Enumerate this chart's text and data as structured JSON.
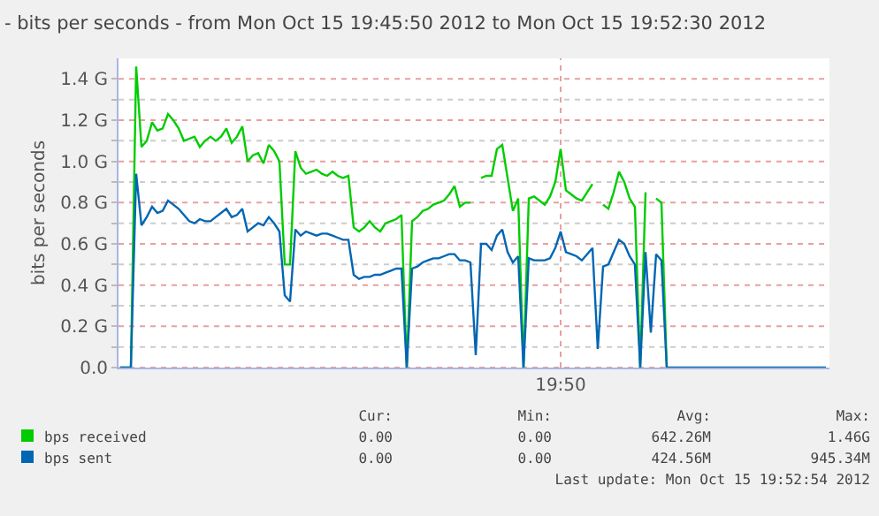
{
  "chart_data": {
    "type": "line",
    "title": "- bits per seconds - from Mon Oct 15 19:45:50 2012 to Mon Oct 15 19:52:30 2012",
    "ylabel": "bits per seconds",
    "categories": [
      null,
      null,
      null,
      null,
      null,
      null,
      null,
      null,
      null,
      null,
      null,
      null,
      null,
      null,
      null,
      null,
      null,
      null,
      null,
      null,
      null,
      null,
      null,
      null,
      null,
      null,
      null,
      null,
      null,
      null,
      null,
      null,
      null,
      null,
      null,
      null,
      null,
      null,
      null,
      null,
      null,
      null,
      null,
      null,
      null,
      null,
      null,
      null,
      null,
      null,
      null,
      null,
      null,
      null,
      null,
      null,
      null,
      null,
      null,
      null,
      null,
      null,
      null,
      null,
      null,
      null,
      null,
      null,
      null,
      null,
      null,
      null,
      null,
      null,
      null,
      null,
      null,
      null,
      null,
      null,
      null,
      null,
      null,
      "19:50",
      null,
      null,
      null,
      null,
      null,
      null,
      null,
      null,
      null,
      null,
      null,
      null,
      null,
      null,
      null,
      null,
      null,
      null,
      null,
      null,
      null,
      null,
      null,
      null,
      null,
      null,
      null,
      null,
      null,
      null,
      null,
      null,
      null,
      null,
      null,
      null,
      null,
      null,
      null,
      null,
      null,
      null,
      null,
      null,
      null,
      null,
      null,
      null,
      null,
      null
    ],
    "series": [
      {
        "name": "bps received",
        "color": "#00cc00",
        "values": [
          0,
          0,
          0,
          1.46,
          1.07,
          1.1,
          1.19,
          1.15,
          1.16,
          1.23,
          1.2,
          1.16,
          1.1,
          1.11,
          1.12,
          1.07,
          1.1,
          1.12,
          1.1,
          1.12,
          1.16,
          1.09,
          1.12,
          1.17,
          1.0,
          1.03,
          1.04,
          0.99,
          1.08,
          1.05,
          1.0,
          0.5,
          0.5,
          1.05,
          0.97,
          0.94,
          0.95,
          0.96,
          0.94,
          0.93,
          0.95,
          0.93,
          0.92,
          0.93,
          0.68,
          0.66,
          0.68,
          0.71,
          0.68,
          0.66,
          0.7,
          0.71,
          0.72,
          0.74,
          0,
          0.71,
          0.73,
          0.76,
          0.77,
          0.79,
          0.8,
          0.81,
          0.84,
          0.88,
          0.78,
          0.8,
          0.8,
          null,
          0.92,
          0.93,
          0.93,
          1.06,
          1.08,
          0.92,
          0.76,
          0.82,
          0,
          0.82,
          0.83,
          0.81,
          0.79,
          0.83,
          0.9,
          1.06,
          0.86,
          0.84,
          0.82,
          0.81,
          0.85,
          0.89,
          null,
          0.79,
          0.77,
          0.85,
          0.95,
          0.9,
          0.82,
          0.78,
          0,
          0.85,
          null,
          0.82,
          0.8,
          0,
          null,
          null,
          null,
          null,
          null,
          null,
          null,
          null,
          null,
          null,
          null,
          null,
          null,
          null,
          null,
          null,
          null,
          null,
          null,
          null,
          null,
          null,
          null,
          null,
          null,
          null,
          null,
          null,
          null,
          null
        ]
      },
      {
        "name": "bps sent",
        "color": "#0066b3",
        "values": [
          0,
          0,
          0,
          0.94,
          0.69,
          0.73,
          0.78,
          0.75,
          0.76,
          0.81,
          0.79,
          0.77,
          0.74,
          0.71,
          0.7,
          0.72,
          0.71,
          0.71,
          0.73,
          0.75,
          0.77,
          0.73,
          0.74,
          0.77,
          0.66,
          0.68,
          0.7,
          0.69,
          0.73,
          0.7,
          0.66,
          0.35,
          0.32,
          0.67,
          0.64,
          0.66,
          0.65,
          0.64,
          0.65,
          0.65,
          0.64,
          0.63,
          0.62,
          0.62,
          0.45,
          0.43,
          0.44,
          0.44,
          0.45,
          0.45,
          0.46,
          0.47,
          0.48,
          0.48,
          0,
          0.48,
          0.49,
          0.51,
          0.52,
          0.53,
          0.53,
          0.54,
          0.55,
          0.55,
          0.52,
          0.52,
          0.51,
          0.06,
          0.6,
          0.6,
          0.57,
          0.64,
          0.67,
          0.56,
          0.51,
          0.54,
          0,
          0.53,
          0.52,
          0.52,
          0.52,
          0.53,
          0.58,
          0.66,
          0.56,
          0.55,
          0.54,
          0.52,
          0.55,
          0.58,
          0.09,
          0.49,
          0.5,
          0.56,
          0.62,
          0.6,
          0.54,
          0.5,
          0,
          0.56,
          0.17,
          0.55,
          0.52,
          0,
          0,
          0,
          0,
          0,
          0,
          0,
          0,
          0,
          0,
          0,
          0,
          0,
          0,
          0,
          0,
          0,
          0,
          0,
          0,
          0,
          0,
          0,
          0,
          0,
          0,
          0,
          0,
          0,
          0,
          0
        ]
      }
    ],
    "ylim": [
      0,
      1.5
    ],
    "yticks": [
      {
        "value": 0,
        "label": "0.0"
      },
      {
        "value": 0.1,
        "label": null
      },
      {
        "value": 0.2,
        "label": "0.2 G"
      },
      {
        "value": 0.3,
        "label": null
      },
      {
        "value": 0.4,
        "label": "0.4 G"
      },
      {
        "value": 0.5,
        "label": null
      },
      {
        "value": 0.6,
        "label": "0.6 G"
      },
      {
        "value": 0.7,
        "label": null
      },
      {
        "value": 0.8,
        "label": "0.8 G"
      },
      {
        "value": 0.9,
        "label": null
      },
      {
        "value": 1.0,
        "label": "1.0 G"
      },
      {
        "value": 1.1,
        "label": null
      },
      {
        "value": 1.2,
        "label": "1.2 G"
      },
      {
        "value": 1.3,
        "label": null
      },
      {
        "value": 1.4,
        "label": "1.4 G"
      }
    ],
    "grid": true,
    "legend": "bottom",
    "annotations": [
      "Cur:",
      "Min:",
      "Avg:",
      "Max:",
      "0.00",
      "0.00",
      "642.26M",
      "1.46G",
      "0.00",
      "0.00",
      "424.56M",
      "945.34M",
      "Last update: Mon Oct 15 19:52:54 2012"
    ]
  }
}
